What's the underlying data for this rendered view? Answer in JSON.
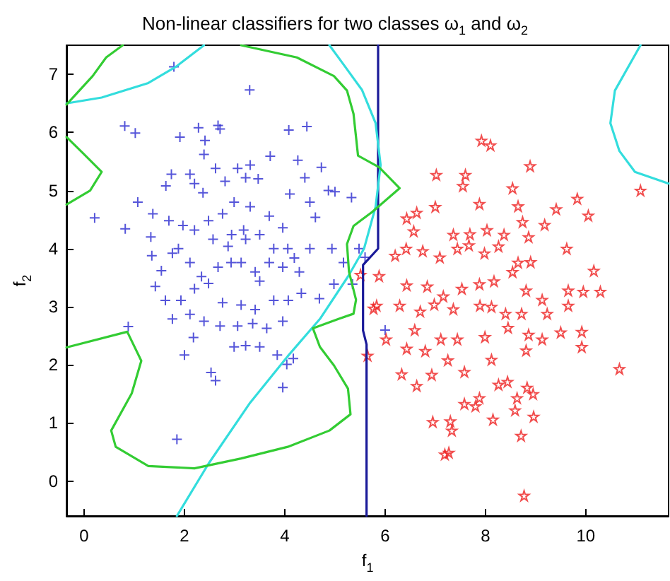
{
  "chart_data": {
    "type": "scatter",
    "title": "Non-linear classifiers for two classes ω$_{1}$ and ω$_{2}$",
    "xlabel": "f$_{1}$",
    "ylabel": "f$_{2}$",
    "xlim": [
      -0.35,
      11.65
    ],
    "ylim": [
      -0.6,
      7.5
    ],
    "xticks": [
      0,
      2,
      4,
      6,
      8,
      10
    ],
    "yticks": [
      0,
      1,
      2,
      3,
      4,
      5,
      6,
      7
    ],
    "grid": false,
    "series": [
      {
        "marker": "cross",
        "color": "#2a2ad0",
        "x": [
          0.21,
          0.81,
          1.02,
          0.82,
          0.88,
          1.79,
          1.85,
          3.3,
          1.07,
          1.37,
          1.33,
          1.35,
          1.42,
          1.62,
          1.76,
          1.91,
          1.63,
          1.69,
          1.76,
          1.54,
          2.28,
          2.41,
          2.39,
          2.67,
          2.71,
          2.11,
          2.2,
          2.37,
          2.62,
          2.81,
          3.06,
          3.31,
          3.22,
          3.47,
          3.71,
          4.08,
          4.44,
          4.26,
          4.4,
          4.73,
          4.1,
          4.5,
          4.87,
          5.0,
          5.33,
          4.61,
          3.96,
          3.69,
          3.31,
          2.99,
          2.76,
          2.48,
          2.2,
          1.97,
          2.57,
          2.94,
          3.18,
          3.5,
          3.78,
          4.06,
          4.5,
          4.94,
          5.17,
          4.98,
          4.69,
          4.29,
          3.96,
          3.69,
          3.41,
          3.13,
          2.93,
          2.67,
          2.34,
          2.11,
          1.88,
          2.2,
          2.48,
          2.76,
          3.13,
          3.41,
          3.78,
          4.07,
          4.33,
          3.64,
          3.96,
          3.36,
          3.06,
          2.71,
          2.39,
          2.11,
          2.18,
          2.0,
          2.99,
          3.22,
          3.5,
          3.85,
          4.04,
          4.17,
          2.53,
          2.62,
          3.96,
          4.19,
          3.5,
          2.87,
          3.22,
          1.74,
          1.93,
          5.35,
          5.48,
          6.0,
          5.6
        ],
        "values": [
          4.53,
          6.11,
          5.99,
          4.34,
          2.66,
          7.13,
          0.72,
          6.73,
          4.8,
          4.6,
          4.2,
          3.88,
          3.35,
          3.11,
          2.79,
          5.92,
          5.08,
          4.48,
          3.92,
          3.62,
          6.08,
          5.86,
          5.62,
          6.12,
          6.06,
          5.28,
          5.12,
          4.96,
          5.38,
          5.16,
          5.38,
          5.44,
          5.22,
          5.2,
          5.59,
          6.04,
          6.1,
          5.52,
          5.22,
          5.4,
          4.94,
          4.8,
          5.0,
          4.98,
          4.88,
          4.54,
          4.36,
          4.56,
          4.72,
          4.8,
          4.6,
          4.48,
          4.32,
          4.4,
          4.16,
          4.24,
          4.32,
          4.24,
          4.0,
          4.0,
          4.0,
          4.0,
          3.76,
          3.39,
          3.14,
          3.6,
          3.68,
          3.76,
          3.6,
          3.76,
          3.76,
          3.68,
          3.52,
          3.76,
          4.0,
          3.31,
          3.4,
          3.07,
          3.03,
          2.95,
          3.11,
          3.11,
          3.23,
          2.63,
          2.75,
          2.71,
          2.67,
          2.67,
          2.75,
          2.87,
          2.47,
          2.17,
          2.31,
          2.33,
          2.31,
          2.17,
          2.01,
          2.11,
          1.87,
          1.73,
          1.61,
          3.84,
          3.44,
          4.04,
          4.16,
          5.28,
          3.11,
          3.39,
          4.0,
          2.6,
          3.85
        ]
      },
      {
        "marker": "star",
        "color": "#ee2222",
        "x": [
          7.92,
          8.1,
          8.89,
          7.02,
          7.6,
          7.55,
          8.54,
          11.09,
          9.83,
          10.05,
          9.41,
          8.65,
          7.88,
          7.0,
          6.63,
          6.43,
          6.57,
          7.36,
          7.69,
          8.03,
          8.37,
          8.74,
          9.18,
          8.86,
          6.42,
          6.75,
          7.09,
          7.44,
          7.67,
          7.98,
          8.26,
          8.65,
          8.9,
          9.62,
          10.16,
          6.2,
          5.88,
          5.83,
          5.51,
          6.43,
          6.84,
          7.16,
          7.53,
          7.88,
          8.17,
          8.54,
          8.81,
          9.13,
          9.65,
          9.95,
          10.29,
          9.65,
          6.29,
          6.7,
          6.98,
          7.36,
          7.89,
          8.12,
          8.4,
          8.72,
          9.23,
          6.59,
          7.11,
          7.44,
          7.99,
          8.45,
          8.86,
          9.13,
          9.5,
          9.92,
          9.92,
          6.02,
          5.65,
          6.43,
          6.8,
          7.25,
          7.58,
          8.12,
          8.81,
          6.33,
          6.93,
          6.63,
          8.26,
          8.44,
          8.83,
          8.95,
          10.67,
          7.58,
          7.88,
          8.63,
          7.8,
          8.15,
          8.59,
          8.96,
          6.95,
          7.3,
          7.33,
          8.71,
          7.19,
          7.27,
          8.77,
          5.77
        ],
        "values": [
          5.86,
          5.78,
          5.42,
          5.27,
          5.27,
          5.08,
          5.04,
          5.0,
          4.86,
          4.57,
          4.68,
          4.73,
          4.77,
          4.72,
          4.62,
          4.52,
          4.3,
          4.24,
          4.25,
          4.32,
          4.24,
          4.46,
          4.41,
          4.2,
          4.0,
          3.96,
          3.85,
          4.0,
          4.06,
          3.92,
          4.04,
          3.76,
          3.77,
          4.0,
          3.62,
          3.88,
          3.53,
          3.02,
          3.55,
          3.37,
          3.35,
          3.18,
          3.31,
          3.39,
          3.44,
          3.6,
          3.28,
          3.12,
          3.28,
          3.26,
          3.26,
          3.02,
          3.02,
          2.92,
          3.04,
          2.96,
          3.02,
          3.0,
          2.88,
          2.88,
          2.88,
          2.6,
          2.44,
          2.44,
          2.48,
          2.64,
          2.52,
          2.44,
          2.56,
          2.57,
          2.31,
          2.44,
          2.16,
          2.28,
          2.24,
          2.08,
          1.88,
          2.09,
          2.25,
          1.84,
          1.83,
          1.64,
          1.66,
          1.71,
          1.61,
          1.5,
          1.93,
          1.33,
          1.43,
          1.43,
          1.29,
          1.06,
          1.22,
          1.11,
          1.02,
          1.03,
          0.87,
          0.78,
          0.46,
          0.49,
          -0.25,
          2.97
        ]
      },
      {
        "type": "line",
        "marker": "none",
        "color": "#1a1a99",
        "x": [
          5.63,
          5.63,
          5.56,
          5.56,
          5.86,
          5.86
        ],
        "values": [
          -0.6,
          2.35,
          2.59,
          3.72,
          4.0,
          7.5
        ]
      },
      {
        "type": "line",
        "marker": "none",
        "color": "#33dddd",
        "x": [
          1.85,
          2.48,
          3.31,
          4.06,
          4.7,
          5.26,
          5.58,
          5.81,
          5.91,
          5.81,
          5.54,
          5.17,
          4.89
        ],
        "values": [
          -0.6,
          0.3,
          1.35,
          2.15,
          2.79,
          3.52,
          4.0,
          4.72,
          5.44,
          6.16,
          6.73,
          7.17,
          7.5
        ]
      },
      {
        "type": "line",
        "marker": "none",
        "color": "#33dddd",
        "x": [
          -0.35,
          0.35,
          1.28,
          1.83,
          2.39
        ],
        "values": [
          6.5,
          6.6,
          6.85,
          7.13,
          7.5
        ]
      },
      {
        "type": "line",
        "marker": "none",
        "color": "#33dddd",
        "x": [
          11.09,
          10.58,
          10.49,
          10.67,
          10.98,
          11.65
        ],
        "values": [
          7.5,
          6.72,
          6.16,
          5.68,
          5.32,
          5.12
        ]
      },
      {
        "type": "line",
        "marker": "none",
        "color": "#33cc33",
        "x": [
          0.77,
          0.44,
          0.17,
          -0.35
        ],
        "values": [
          7.5,
          7.29,
          6.97,
          6.48
        ]
      },
      {
        "type": "line",
        "marker": "none",
        "color": "#33cc33",
        "x": [
          -0.35,
          -0.02,
          0.35,
          0.12,
          -0.35
        ],
        "values": [
          5.92,
          5.64,
          5.32,
          5.0,
          4.76
        ]
      },
      {
        "type": "line",
        "marker": "none",
        "color": "#33cc33",
        "x": [
          -0.35,
          0.86,
          1.14,
          0.95,
          0.54,
          0.63,
          1.28,
          2.2,
          3.13,
          4.06,
          4.89,
          5.31,
          5.26,
          4.98,
          4.7,
          4.56,
          5.07,
          5.37,
          5.42,
          5.28,
          5.24,
          5.37,
          5.74,
          6.29,
          5.88,
          5.46,
          5.37,
          5.24,
          4.98,
          4.24,
          3.13
        ],
        "values": [
          2.3,
          2.57,
          2.07,
          1.51,
          0.87,
          0.59,
          0.26,
          0.22,
          0.39,
          0.59,
          0.87,
          1.15,
          1.59,
          1.99,
          2.31,
          2.63,
          2.79,
          2.88,
          3.12,
          3.6,
          4.08,
          4.39,
          4.63,
          5.04,
          5.4,
          5.6,
          6.32,
          6.72,
          6.97,
          7.29,
          7.5
        ]
      }
    ]
  }
}
